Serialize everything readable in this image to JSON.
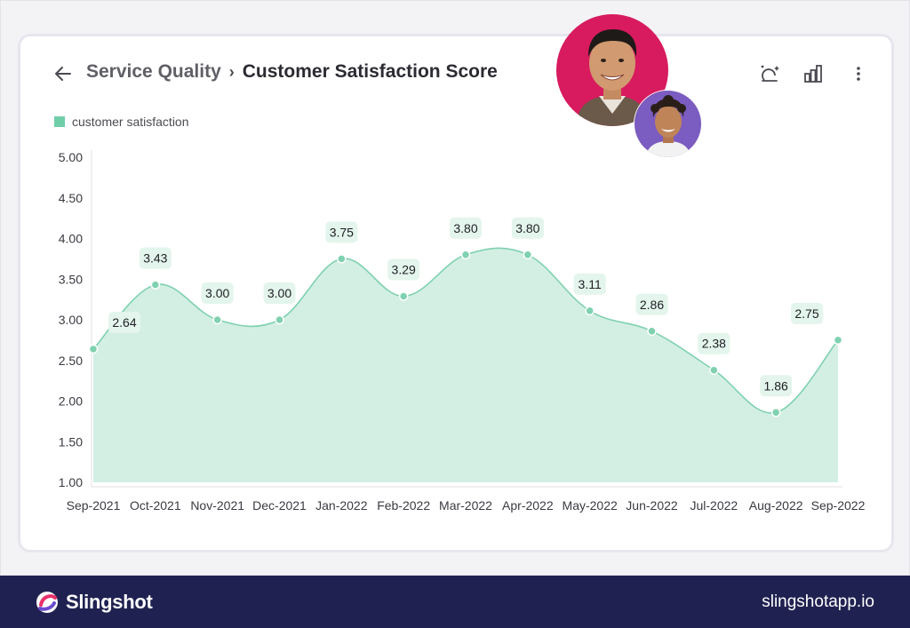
{
  "header": {
    "back_icon": "arrow-left-icon",
    "breadcrumb_parent": "Service Quality",
    "breadcrumb_separator": "›",
    "breadcrumb_current": "Customer Satisfaction Score",
    "tools": [
      "magic-icon",
      "bar-chart-icon",
      "more-vertical-icon"
    ]
  },
  "footer": {
    "brand_name": "Slingshot",
    "url": "slingshotapp.io"
  },
  "colors": {
    "series_fill": "#d3efe3",
    "series_line": "#7fd1b0",
    "point": "#7fd1b0",
    "footer_bg": "#1f2251",
    "avatar_big_bg": "#d81b5e",
    "avatar_small_bg": "#7b5cc0"
  },
  "chart_data": {
    "type": "area",
    "title": "Customer Satisfaction Score",
    "legend": [
      "customer satisfaction"
    ],
    "legend_position": "top-left",
    "categories": [
      "Sep-2021",
      "Oct-2021",
      "Nov-2021",
      "Dec-2021",
      "Jan-2022",
      "Feb-2022",
      "Mar-2022",
      "Apr-2022",
      "May-2022",
      "Jun-2022",
      "Jul-2022",
      "Aug-2022",
      "Sep-2022"
    ],
    "series": [
      {
        "name": "customer satisfaction",
        "values": [
          2.64,
          3.43,
          3.0,
          3.0,
          3.75,
          3.29,
          3.8,
          3.8,
          3.11,
          2.86,
          2.38,
          1.86,
          2.75
        ],
        "labels": [
          "2.64",
          "3.43",
          "3.00",
          "3.00",
          "3.75",
          "3.29",
          "3.80",
          "3.80",
          "3.11",
          "2.86",
          "2.38",
          "1.86",
          "2.75"
        ]
      }
    ],
    "yticks": [
      "1.00",
      "1.50",
      "2.00",
      "2.50",
      "3.00",
      "3.50",
      "4.00",
      "4.50",
      "5.00"
    ],
    "ylim": [
      1,
      5
    ],
    "xlabel": "",
    "ylabel": "",
    "grid": false
  }
}
